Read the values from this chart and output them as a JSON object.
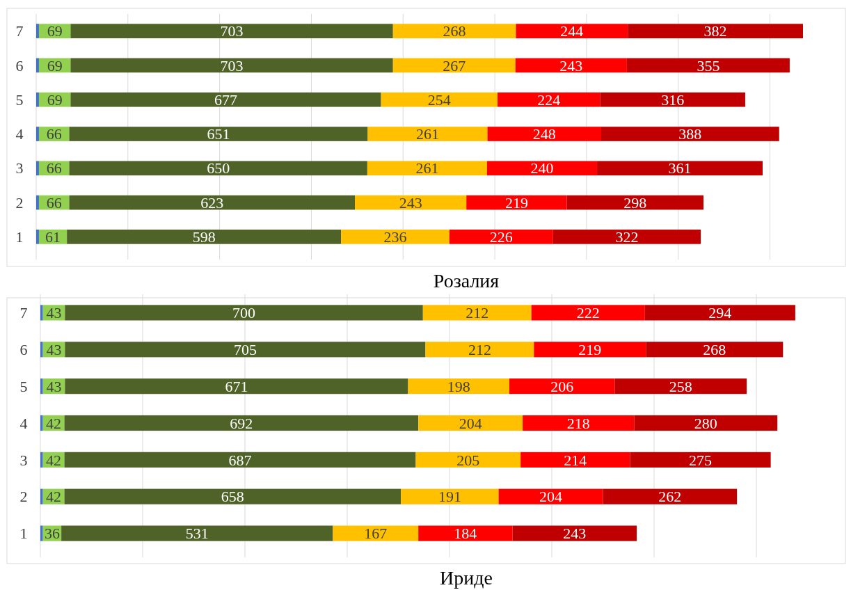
{
  "chart_data": [
    {
      "type": "bar",
      "orientation": "horizontal",
      "stacked": true,
      "title": "Розалия",
      "categories": [
        "7",
        "6",
        "5",
        "4",
        "3",
        "2",
        "1"
      ],
      "xlim": [
        0,
        1760
      ],
      "xticks": [
        {
          "value": 0,
          "label": null
        },
        {
          "value": 200,
          "label": null
        },
        {
          "value": 400,
          "label": null
        },
        {
          "value": 600,
          "label": null
        },
        {
          "value": 800,
          "label": null
        },
        {
          "value": 1000,
          "label": null
        },
        {
          "value": 1200,
          "label": null
        },
        {
          "value": 1400,
          "label": null
        },
        {
          "value": 1600,
          "label": null
        }
      ],
      "grid": "x",
      "tick_labels": "y",
      "series": [
        {
          "color": "#4472c4",
          "values": [
            6,
            6,
            6,
            6,
            6,
            6,
            6
          ],
          "value_labels": [
            null,
            null,
            null,
            null,
            null,
            null,
            null
          ]
        },
        {
          "color": "#92d050",
          "values": [
            69,
            69,
            69,
            66,
            66,
            66,
            61
          ],
          "value_labels": [
            "69",
            "69",
            "69",
            "66",
            "66",
            "66",
            "61"
          ]
        },
        {
          "color": "#4f6228",
          "values": [
            703,
            703,
            677,
            651,
            650,
            623,
            598
          ],
          "value_labels": [
            "703",
            "703",
            "677",
            "651",
            "650",
            "623",
            "598"
          ]
        },
        {
          "color": "#ffc000",
          "values": [
            268,
            267,
            254,
            261,
            261,
            243,
            236
          ],
          "value_labels": [
            "268",
            "267",
            "254",
            "261",
            "261",
            "243",
            "236"
          ]
        },
        {
          "color": "#ff0000",
          "values": [
            244,
            243,
            224,
            248,
            240,
            219,
            226
          ],
          "value_labels": [
            "244",
            "243",
            "224",
            "248",
            "240",
            "219",
            "226"
          ]
        },
        {
          "color": "#c00000",
          "values": [
            382,
            355,
            316,
            388,
            361,
            298,
            322
          ],
          "value_labels": [
            "382",
            "355",
            "316",
            "388",
            "361",
            "298",
            "322"
          ]
        }
      ]
    },
    {
      "type": "bar",
      "orientation": "horizontal",
      "stacked": true,
      "title": "Ириде",
      "categories": [
        "7",
        "6",
        "5",
        "4",
        "3",
        "2",
        "1"
      ],
      "xlim": [
        0,
        1570
      ],
      "xticks": [
        {
          "value": 0,
          "label": null
        },
        {
          "value": 200,
          "label": null
        },
        {
          "value": 400,
          "label": null
        },
        {
          "value": 600,
          "label": null
        },
        {
          "value": 800,
          "label": null
        },
        {
          "value": 1000,
          "label": null
        },
        {
          "value": 1200,
          "label": null
        },
        {
          "value": 1400,
          "label": null
        }
      ],
      "grid": "x",
      "tick_labels": "y",
      "series": [
        {
          "color": "#4472c4",
          "values": [
            5,
            5,
            5,
            5,
            5,
            5,
            5
          ],
          "value_labels": [
            null,
            null,
            null,
            null,
            null,
            null,
            null
          ]
        },
        {
          "color": "#92d050",
          "values": [
            43,
            43,
            43,
            42,
            42,
            42,
            36
          ],
          "value_labels": [
            "43",
            "43",
            "43",
            "42",
            "42",
            "42",
            "36"
          ]
        },
        {
          "color": "#4f6228",
          "values": [
            700,
            705,
            671,
            692,
            687,
            658,
            531
          ],
          "value_labels": [
            "700",
            "705",
            "671",
            "692",
            "687",
            "658",
            "531"
          ]
        },
        {
          "color": "#ffc000",
          "values": [
            212,
            212,
            198,
            204,
            205,
            191,
            167
          ],
          "value_labels": [
            "212",
            "212",
            "198",
            "204",
            "205",
            "191",
            "167"
          ]
        },
        {
          "color": "#ff0000",
          "values": [
            222,
            219,
            206,
            218,
            214,
            204,
            184
          ],
          "value_labels": [
            "222",
            "219",
            "206",
            "218",
            "214",
            "204",
            "184"
          ]
        },
        {
          "color": "#c00000",
          "values": [
            294,
            268,
            258,
            280,
            275,
            262,
            243
          ],
          "value_labels": [
            "294",
            "268",
            "258",
            "280",
            "275",
            "262",
            "243"
          ]
        }
      ]
    }
  ]
}
